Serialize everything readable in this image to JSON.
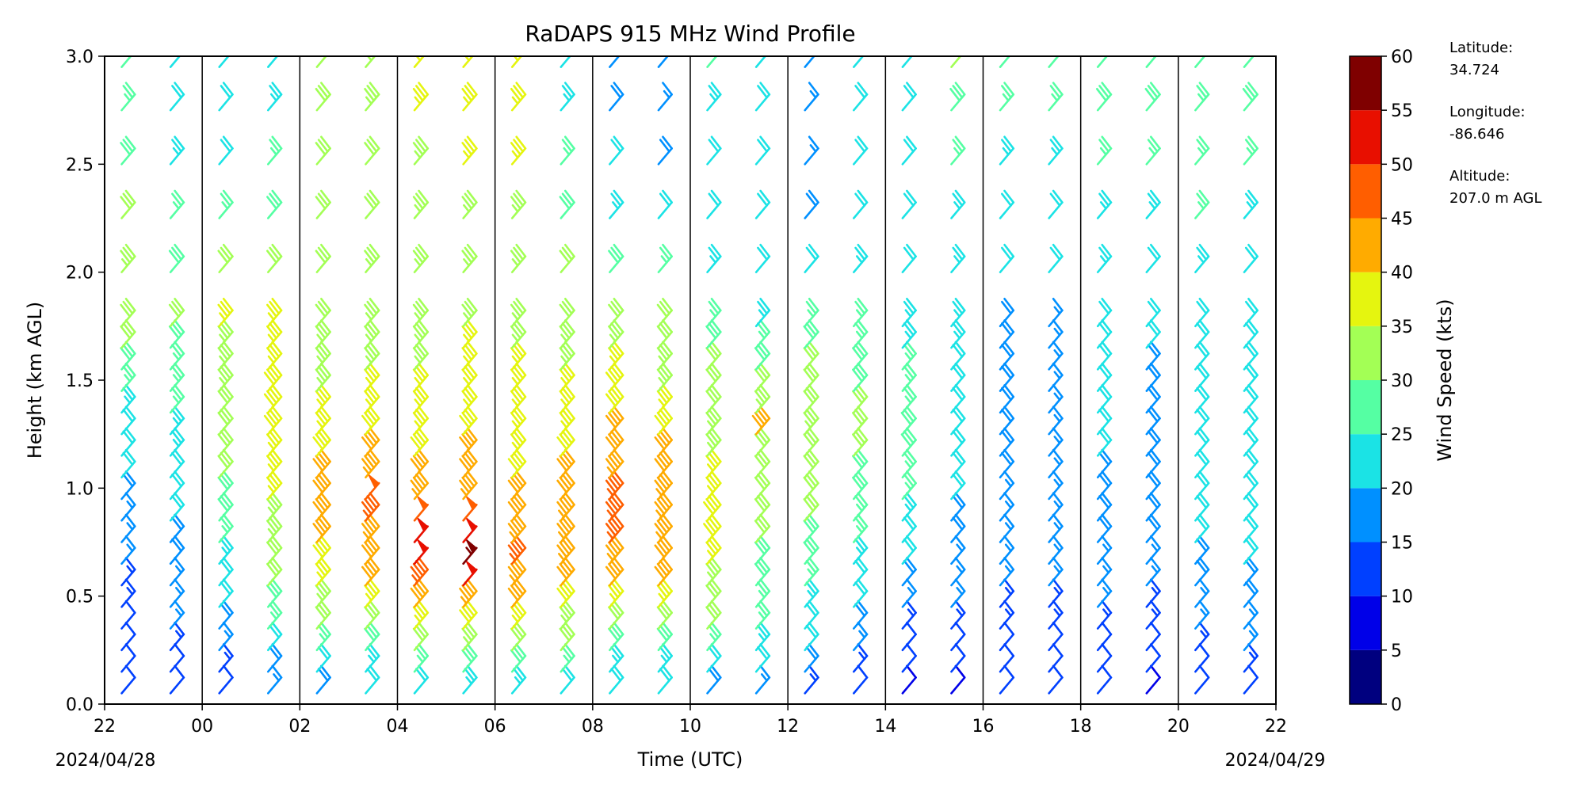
{
  "chart_data": {
    "type": "wind-barb profile",
    "title": "RaDAPS 915 MHz Wind Profile",
    "xlabel": "Time (UTC)",
    "ylabel": "Height (km AGL)",
    "x_ticks": [
      "22",
      "00",
      "02",
      "04",
      "06",
      "08",
      "10",
      "12",
      "14",
      "16",
      "18",
      "20",
      "22"
    ],
    "x_start_date": "2024/04/28",
    "x_end_date": "2024/04/29",
    "x_range_hours_utc": [
      "2024-04-28 22:00",
      "2024-04-29 22:00"
    ],
    "y_ticks": [
      "0.0",
      "0.5",
      "1.0",
      "1.5",
      "2.0",
      "2.5",
      "3.0"
    ],
    "ylim": [
      0.0,
      3.0
    ],
    "colorbar": {
      "label": "Wind Speed (kts)",
      "range": [
        0,
        60
      ],
      "ticks": [
        "0",
        "5",
        "10",
        "15",
        "20",
        "25",
        "30",
        "35",
        "40",
        "45",
        "50",
        "55",
        "60"
      ],
      "colors": [
        "#00007f",
        "#0000e8",
        "#0040ff",
        "#0090ff",
        "#1be3e5",
        "#55ffa3",
        "#a3ff55",
        "#e5f50f",
        "#ffab00",
        "#ff5e00",
        "#e80f00",
        "#7f0000"
      ]
    },
    "site": {
      "latitude_label": "Latitude:",
      "latitude": "34.724",
      "longitude_label": "Longitude:",
      "longitude": "-86.646",
      "altitude_label": "Altitude:",
      "altitude": "207.0 m AGL"
    },
    "vertical_lines_at_hours": [
      0,
      2,
      4,
      6,
      8,
      10,
      12,
      14,
      16,
      18,
      20
    ],
    "barb_columns_hours_utc": [
      22.0,
      23.0,
      0.0,
      1.0,
      2.0,
      3.0,
      4.0,
      5.0,
      6.0,
      7.0,
      8.0,
      9.0,
      10.0,
      11.0,
      12.0,
      13.0,
      14.0,
      15.0,
      16.0,
      17.0,
      18.0,
      19.0,
      20.0,
      21.0
    ],
    "levels_km": [
      0.05,
      0.15,
      0.25,
      0.35,
      0.45,
      0.55,
      0.65,
      0.75,
      0.85,
      0.95,
      1.05,
      1.15,
      1.25,
      1.35,
      1.45,
      1.55,
      1.65,
      1.75,
      2.0,
      2.25,
      2.5,
      2.75,
      2.95
    ],
    "wind_speed_kts": [
      [
        10,
        10,
        11,
        12,
        13,
        14,
        15,
        16,
        17,
        18,
        20,
        22,
        22,
        24,
        26,
        28,
        30,
        32,
        34,
        30,
        28,
        26,
        25
      ],
      [
        10,
        12,
        14,
        15,
        16,
        17,
        18,
        19,
        20,
        21,
        22,
        23,
        24,
        25,
        26,
        27,
        28,
        30,
        29,
        26,
        24,
        22,
        22
      ],
      [
        12,
        14,
        16,
        18,
        20,
        22,
        24,
        26,
        28,
        29,
        30,
        31,
        32,
        32,
        33,
        34,
        34,
        35,
        30,
        26,
        22,
        20,
        20
      ],
      [
        15,
        18,
        22,
        25,
        28,
        30,
        32,
        33,
        34,
        35,
        36,
        37,
        38,
        38,
        38,
        37,
        36,
        35,
        32,
        28,
        26,
        24,
        22
      ],
      [
        18,
        22,
        26,
        30,
        34,
        36,
        38,
        40,
        41,
        42,
        40,
        38,
        36,
        35,
        34,
        34,
        33,
        32,
        31,
        30,
        30,
        31,
        32
      ],
      [
        20,
        24,
        28,
        32,
        36,
        40,
        42,
        44,
        46,
        48,
        44,
        40,
        38,
        36,
        35,
        34,
        34,
        33,
        33,
        32,
        32,
        33,
        34
      ],
      [
        22,
        26,
        30,
        35,
        40,
        46,
        50,
        52,
        48,
        44,
        40,
        38,
        37,
        36,
        35,
        34,
        34,
        33,
        33,
        33,
        34,
        35,
        36
      ],
      [
        24,
        28,
        33,
        38,
        44,
        52,
        56,
        52,
        48,
        44,
        42,
        40,
        38,
        37,
        36,
        35,
        35,
        34,
        34,
        34,
        35,
        36,
        37
      ],
      [
        24,
        28,
        32,
        36,
        40,
        44,
        46,
        44,
        42,
        40,
        38,
        37,
        36,
        36,
        35,
        35,
        34,
        33,
        33,
        34,
        35,
        36,
        38
      ],
      [
        22,
        26,
        30,
        34,
        38,
        42,
        44,
        44,
        43,
        42,
        40,
        38,
        37,
        36,
        35,
        34,
        33,
        32,
        30,
        28,
        26,
        24,
        22
      ],
      [
        20,
        24,
        28,
        32,
        36,
        40,
        43,
        45,
        46,
        45,
        43,
        41,
        40,
        39,
        38,
        36,
        34,
        32,
        28,
        24,
        20,
        18,
        16
      ],
      [
        20,
        24,
        28,
        32,
        36,
        40,
        42,
        44,
        44,
        43,
        42,
        40,
        38,
        36,
        34,
        33,
        32,
        30,
        26,
        22,
        18,
        16,
        16
      ],
      [
        18,
        22,
        26,
        30,
        32,
        34,
        36,
        38,
        38,
        37,
        36,
        34,
        33,
        32,
        31,
        30,
        28,
        26,
        24,
        22,
        22,
        24,
        26
      ],
      [
        16,
        20,
        24,
        26,
        27,
        28,
        29,
        30,
        30,
        30,
        30,
        32,
        40,
        34,
        30,
        28,
        26,
        24,
        22,
        20,
        20,
        22,
        24
      ],
      [
        14,
        18,
        20,
        22,
        24,
        26,
        28,
        29,
        30,
        30,
        31,
        32,
        33,
        32,
        31,
        30,
        28,
        26,
        22,
        18,
        16,
        16,
        18
      ],
      [
        12,
        14,
        16,
        18,
        20,
        22,
        24,
        26,
        27,
        28,
        29,
        30,
        31,
        30,
        29,
        28,
        27,
        26,
        24,
        22,
        20,
        20,
        22
      ],
      [
        8,
        10,
        12,
        14,
        16,
        18,
        20,
        22,
        24,
        26,
        27,
        28,
        28,
        27,
        26,
        25,
        24,
        24,
        22,
        20,
        20,
        20,
        22
      ],
      [
        9,
        10,
        12,
        14,
        15,
        16,
        17,
        18,
        19,
        20,
        21,
        22,
        22,
        22,
        22,
        22,
        23,
        24,
        24,
        24,
        26,
        28,
        30
      ],
      [
        10,
        10,
        12,
        13,
        14,
        15,
        16,
        16,
        17,
        17,
        18,
        18,
        18,
        18,
        18,
        18,
        18,
        18,
        20,
        22,
        24,
        26,
        28
      ],
      [
        10,
        10,
        12,
        13,
        14,
        15,
        16,
        16,
        17,
        17,
        17,
        17,
        17,
        17,
        17,
        17,
        17,
        17,
        20,
        22,
        24,
        26,
        28
      ],
      [
        10,
        10,
        12,
        14,
        15,
        16,
        17,
        18,
        18,
        19,
        19,
        20,
        20,
        20,
        20,
        20,
        21,
        22,
        24,
        24,
        26,
        28,
        28
      ],
      [
        9,
        10,
        12,
        13,
        14,
        16,
        17,
        18,
        18,
        19,
        19,
        19,
        19,
        19,
        19,
        19,
        20,
        21,
        22,
        24,
        26,
        28,
        28
      ],
      [
        10,
        12,
        14,
        16,
        17,
        18,
        19,
        20,
        20,
        21,
        21,
        21,
        22,
        22,
        22,
        22,
        22,
        22,
        24,
        26,
        26,
        26,
        26
      ],
      [
        12,
        14,
        16,
        17,
        18,
        19,
        20,
        20,
        20,
        21,
        21,
        21,
        22,
        22,
        22,
        22,
        22,
        20,
        22,
        24,
        26,
        28,
        28
      ]
    ]
  }
}
